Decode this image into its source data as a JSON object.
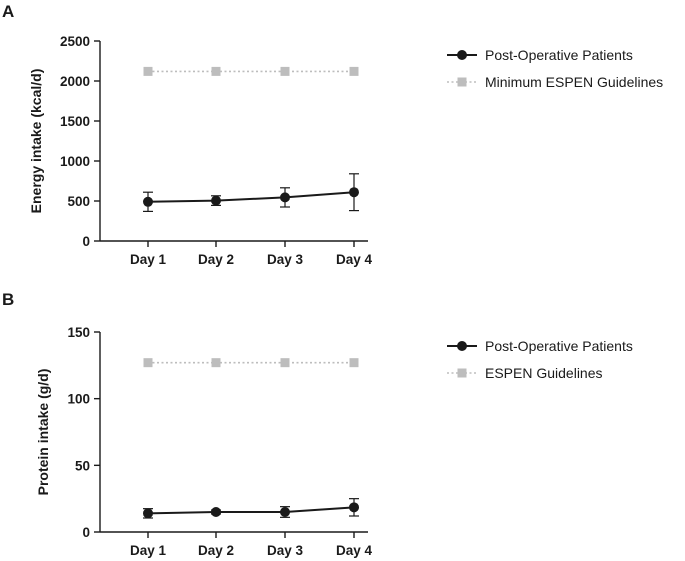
{
  "chart_data": [
    {
      "type": "line",
      "panel_label": "A",
      "categories": [
        "Day 1",
        "Day 2",
        "Day 3",
        "Day 4"
      ],
      "ylabel": "Energy intake (kcal/d)",
      "ylim": [
        0,
        2500
      ],
      "yticks": [
        0,
        500,
        1000,
        1500,
        2000,
        2500
      ],
      "legend_position": "top-right",
      "grid": false,
      "series": [
        {
          "name": "Post-Operative Patients",
          "values": [
            490,
            505,
            545,
            610
          ],
          "error": [
            120,
            60,
            120,
            230
          ],
          "color": "#1a1a1a",
          "marker": "circle",
          "line_style": "solid"
        },
        {
          "name": "Minimum ESPEN Guidelines",
          "values": [
            2120,
            2120,
            2120,
            2120
          ],
          "color": "#bdbdbd",
          "marker": "square",
          "line_style": "dotted"
        }
      ]
    },
    {
      "type": "line",
      "panel_label": "B",
      "categories": [
        "Day 1",
        "Day 2",
        "Day 3",
        "Day 4"
      ],
      "ylabel": "Protein intake (g/d)",
      "ylim": [
        0,
        150
      ],
      "yticks": [
        0,
        50,
        100,
        150
      ],
      "legend_position": "top-right",
      "grid": false,
      "series": [
        {
          "name": "Post-Operative Patients",
          "values": [
            14,
            15,
            15,
            18.5
          ],
          "error": [
            3.5,
            1.5,
            4,
            6.5
          ],
          "color": "#1a1a1a",
          "marker": "circle",
          "line_style": "solid"
        },
        {
          "name": "ESPEN Guidelines",
          "values": [
            127,
            127,
            127,
            127
          ],
          "color": "#bdbdbd",
          "marker": "square",
          "line_style": "dotted"
        }
      ]
    }
  ]
}
